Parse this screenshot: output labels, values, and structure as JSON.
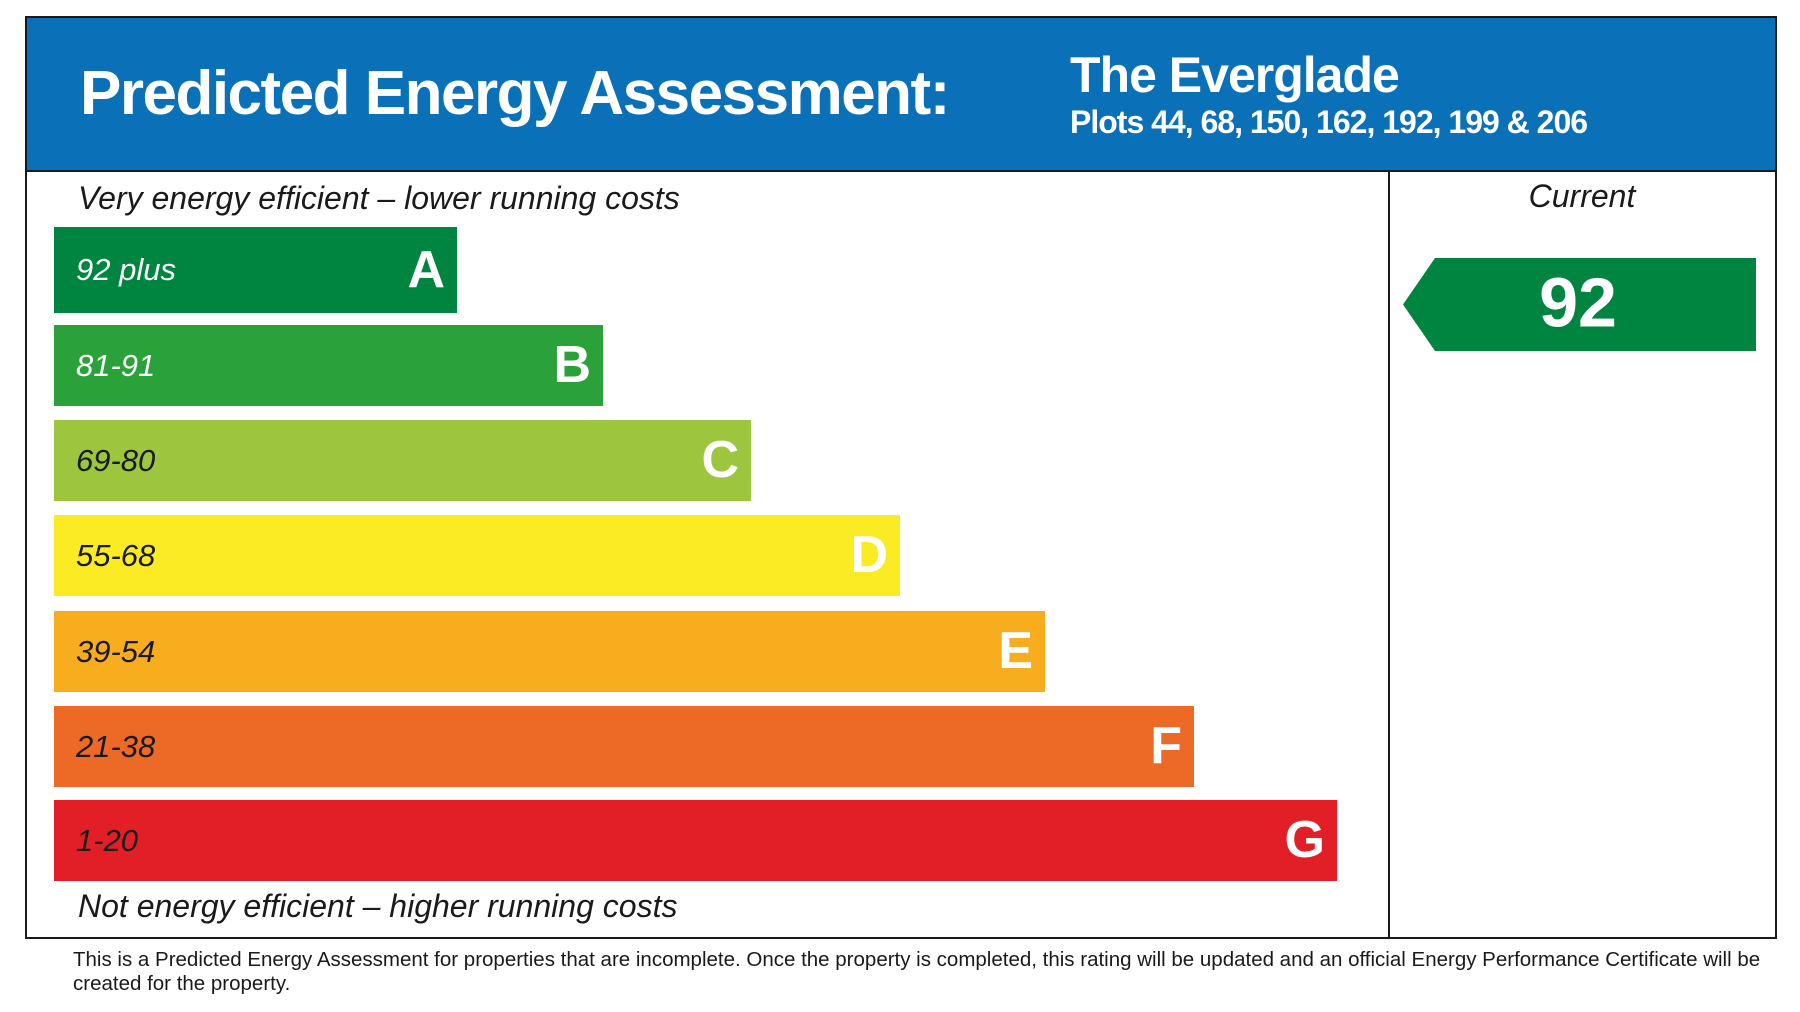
{
  "header": {
    "title": "Predicted Energy Assessment:",
    "development": "The Everglade",
    "plots": "Plots 44, 68, 150, 162, 192, 199 & 206"
  },
  "top_label": "Very energy efficient – lower running costs",
  "bottom_label": "Not energy efficient – higher running costs",
  "bands": [
    {
      "range": "92 plus",
      "letter": "A",
      "color": "#008541",
      "text_color": "#ffffff"
    },
    {
      "range": "81-91",
      "letter": "B",
      "color": "#2ba13a",
      "text_color": "#ffffff"
    },
    {
      "range": "69-80",
      "letter": "C",
      "color": "#9dc53e",
      "text_color": "#1a1a1a"
    },
    {
      "range": "55-68",
      "letter": "D",
      "color": "#faeb25",
      "text_color": "#1a1a1a"
    },
    {
      "range": "39-54",
      "letter": "E",
      "color": "#f8ad1f",
      "text_color": "#1a1a1a"
    },
    {
      "range": "21-38",
      "letter": "F",
      "color": "#ec6a25",
      "text_color": "#1a1a1a"
    },
    {
      "range": "1-20",
      "letter": "G",
      "color": "#e21f26",
      "text_color": "#1a1a1a"
    }
  ],
  "current": {
    "label": "Current",
    "value": 92,
    "color": "#008541"
  },
  "footnote": "This is a Predicted Energy Assessment for properties that are incomplete. Once the property is completed, this rating will be updated and an official Energy Performance Certificate will be created for the property."
}
